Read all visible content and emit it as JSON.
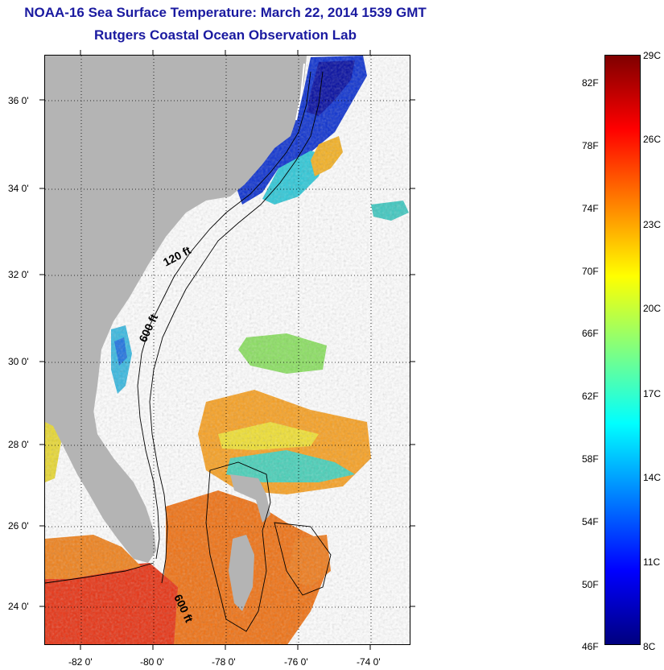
{
  "header": {
    "title": "NOAA-16 Sea Surface Temperature:  March 22, 2014 1539 GMT",
    "subtitle": "Rutgers Coastal Ocean Observation Lab"
  },
  "map": {
    "lat_ticks": [
      "36 0'",
      "34 0'",
      "32 0'",
      "30 0'",
      "28 0'",
      "26 0'",
      "24 0'"
    ],
    "lon_ticks": [
      "-82 0'",
      "-80 0'",
      "-78 0'",
      "-76 0'",
      "-74 0'"
    ],
    "contour_labels": [
      "120 ft",
      "600 ft",
      "600 ft"
    ],
    "land_color": "#b4b4b4"
  },
  "colorbar": {
    "fahrenheit": [
      "82F",
      "78F",
      "74F",
      "70F",
      "66F",
      "62F",
      "58F",
      "54F",
      "50F",
      "46F"
    ],
    "celsius": [
      "29C",
      "26C",
      "23C",
      "20C",
      "17C",
      "14C",
      "11C",
      "8C"
    ],
    "colors": [
      "#7f0000",
      "#ff0000",
      "#ff8000",
      "#ffff00",
      "#80ff80",
      "#00ffff",
      "#0080ff",
      "#0000ff",
      "#00007f"
    ]
  }
}
